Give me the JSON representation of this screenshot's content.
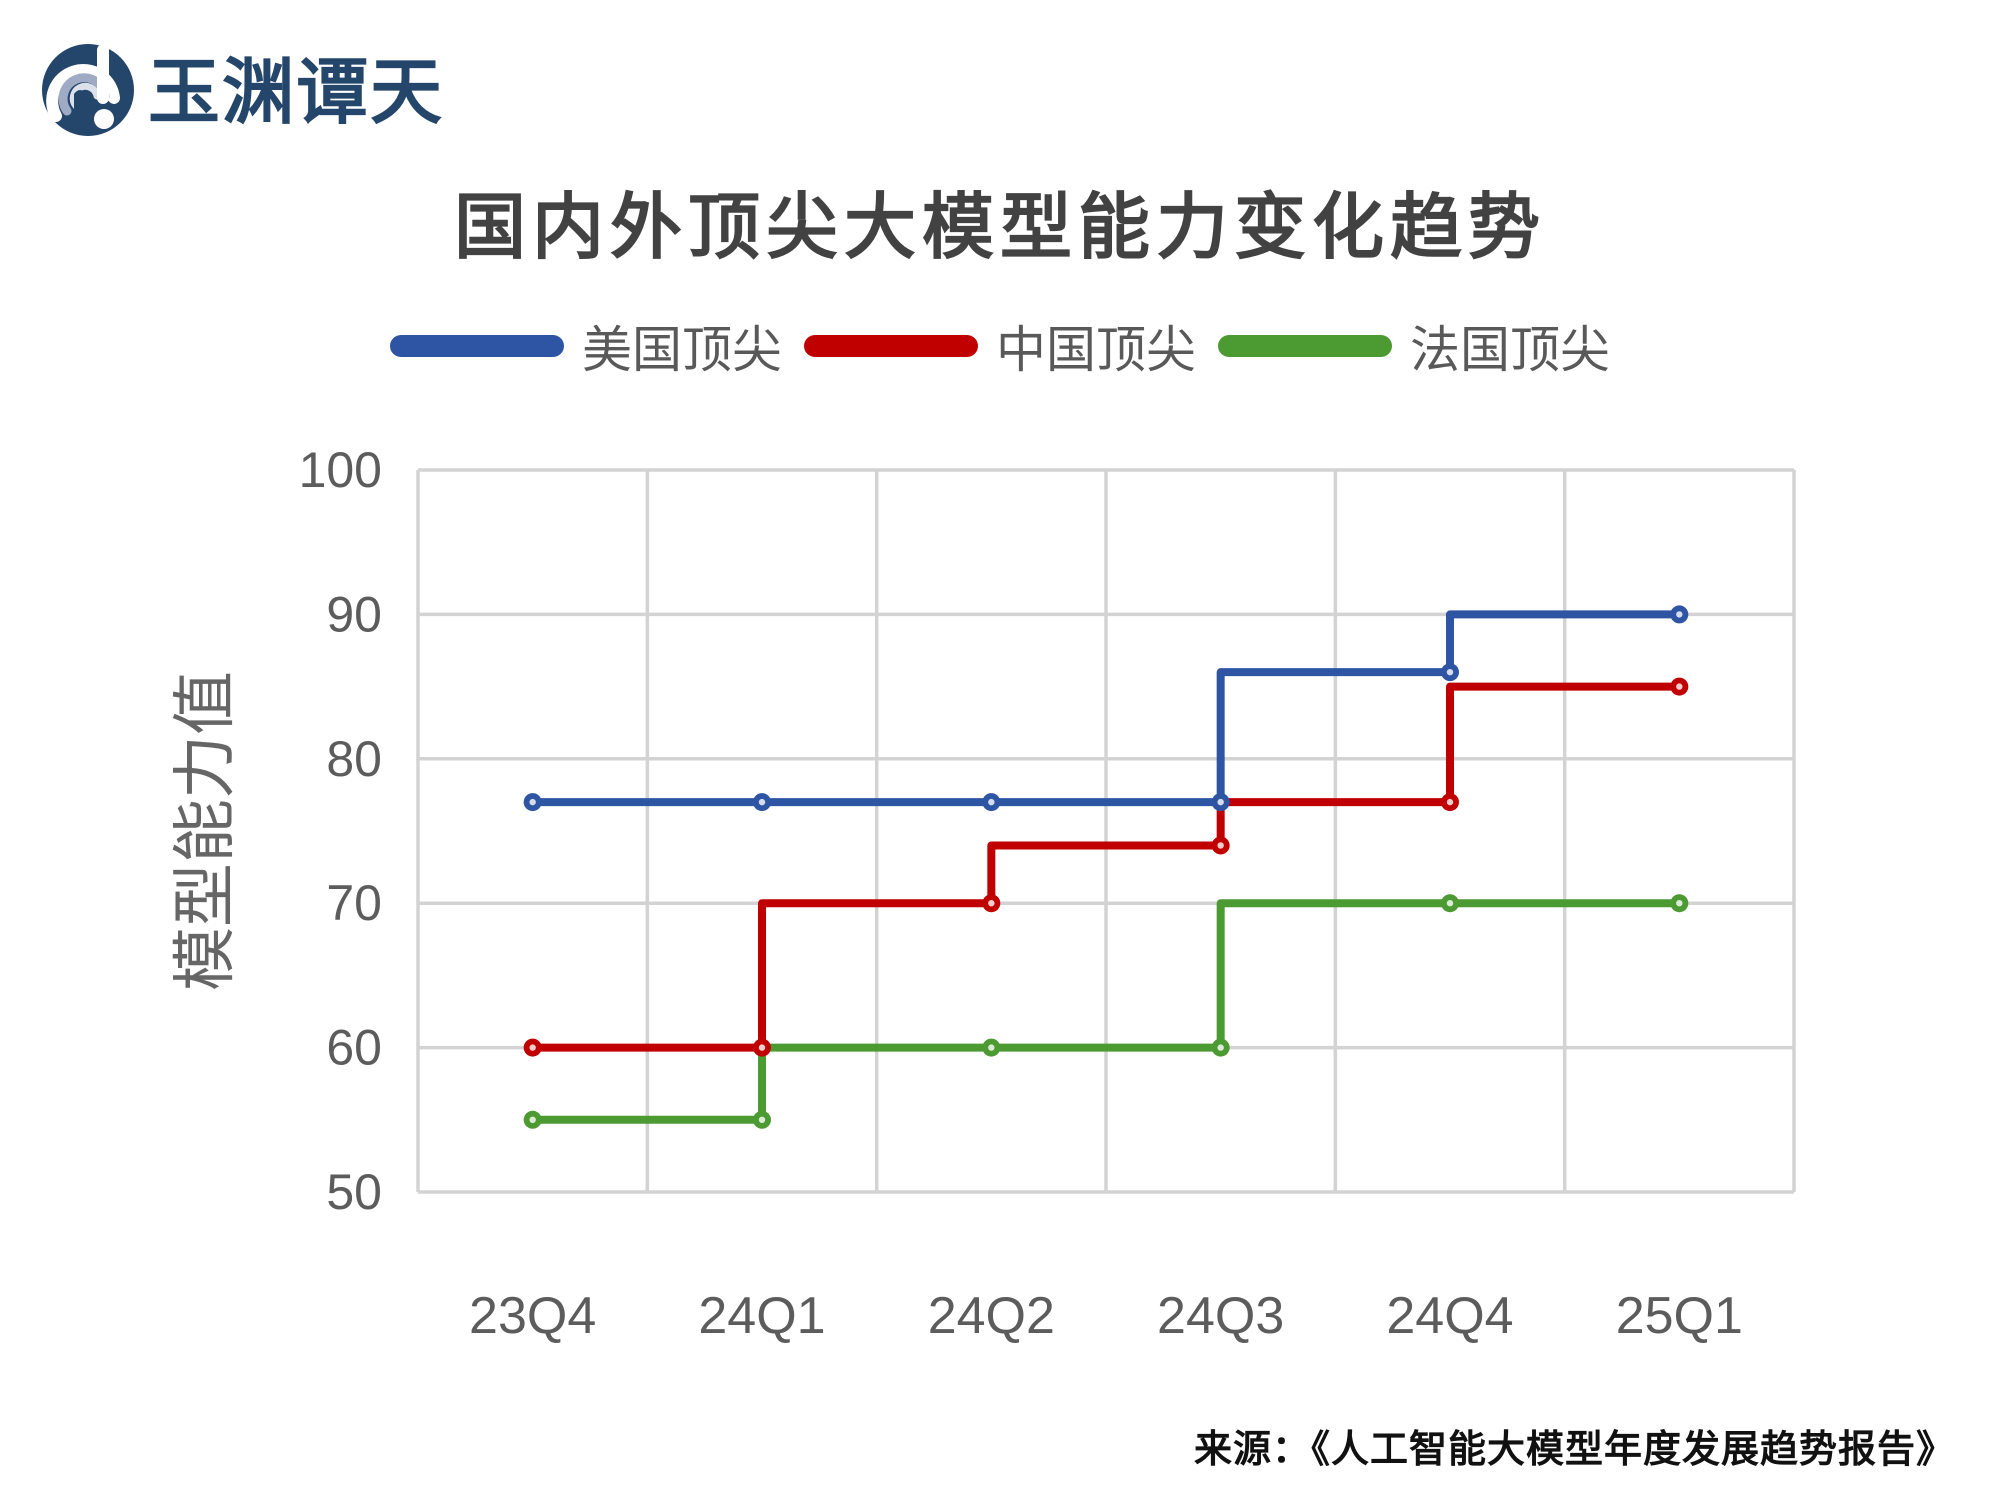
{
  "brand": {
    "logo_icon": "whirlpool-exclamation-logo",
    "logo_text": "玉渊谭天",
    "logo_color": "#24466B"
  },
  "chart": {
    "title": "国内外顶尖大模型能力变化趋势"
  },
  "chart_data": {
    "type": "line",
    "step": "pre",
    "title": "国内外顶尖大模型能力变化趋势",
    "xlabel": "",
    "ylabel": "模型能力值",
    "ylim": [
      50,
      100
    ],
    "yticks": [
      100,
      90,
      80,
      70,
      60,
      50
    ],
    "grid": true,
    "legend_position": "top",
    "categories": [
      "23Q4",
      "24Q1",
      "24Q2",
      "24Q3",
      "24Q4",
      "25Q1"
    ],
    "series": [
      {
        "name": "美国顶尖",
        "color": "#2E55A3",
        "values": [
          77,
          77,
          77,
          77,
          86,
          90
        ]
      },
      {
        "name": "中国顶尖",
        "color": "#C00000",
        "values": [
          60,
          60,
          70,
          74,
          77,
          85
        ]
      },
      {
        "name": "法国顶尖",
        "color": "#4C9A32",
        "values": [
          55,
          55,
          60,
          60,
          70,
          70
        ]
      }
    ]
  },
  "source": {
    "text": "来源：《人工智能大模型年度发展趋势报告》"
  },
  "colors": {
    "grid": "#D3D3D3",
    "axis_text": "#5C5C5C",
    "title_text": "#424242",
    "legend_text": "#595959",
    "background": "#FFFFFF"
  }
}
